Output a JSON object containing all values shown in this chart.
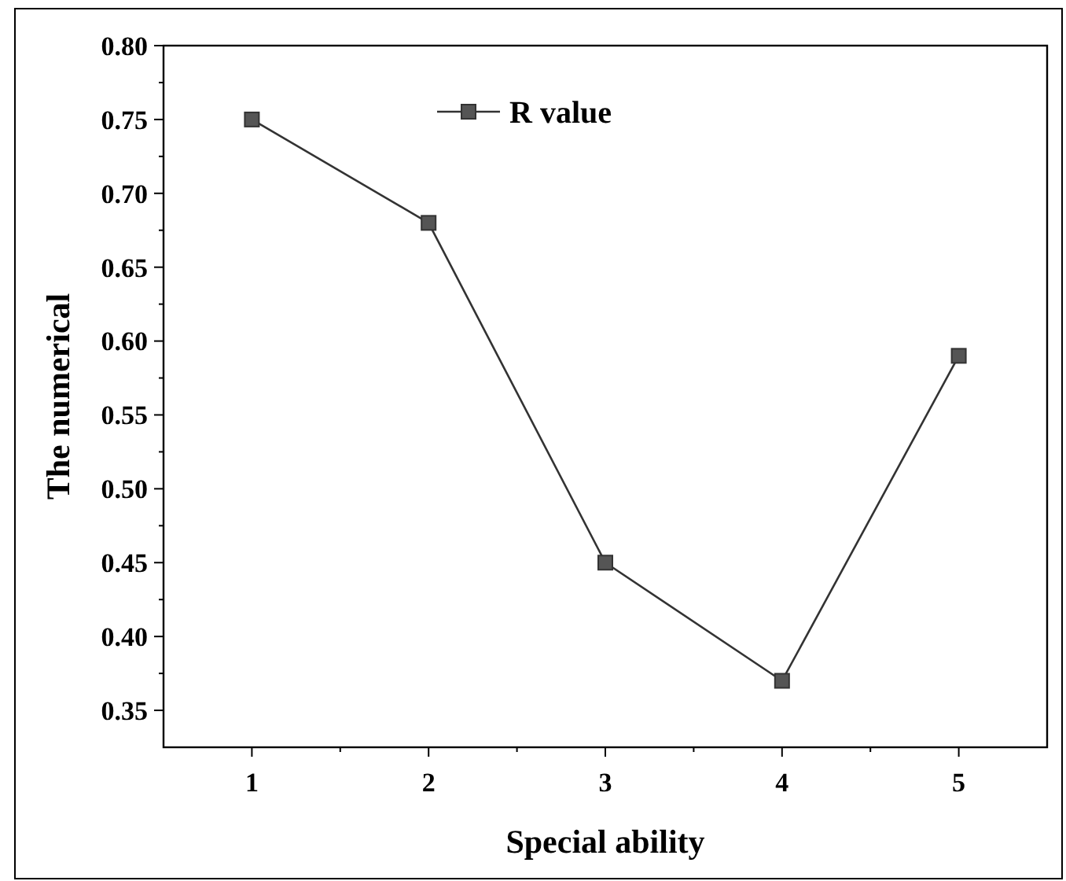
{
  "chart_data": {
    "type": "line",
    "xlabel": "Special ability",
    "ylabel": "The numerical",
    "x": [
      1,
      2,
      3,
      4,
      5
    ],
    "series": [
      {
        "name": "R value",
        "color": "#333333",
        "values": [
          0.75,
          0.68,
          0.45,
          0.37,
          0.59
        ]
      }
    ],
    "xlim": [
      0.5,
      5.5
    ],
    "xticks": [
      1,
      {
        "value": 1.5,
        "label": null
      },
      2,
      {
        "value": 2.5,
        "label": null
      },
      3,
      {
        "value": 3.5,
        "label": null
      },
      4,
      {
        "value": 4.5,
        "label": null
      },
      5
    ],
    "ylim": [
      0.325,
      0.8
    ],
    "yticks": [
      {
        "value": 0.35,
        "label": "0.35"
      },
      {
        "value": 0.375,
        "label": null
      },
      {
        "value": 0.4,
        "label": "0.40"
      },
      {
        "value": 0.425,
        "label": null
      },
      {
        "value": 0.45,
        "label": "0.45"
      },
      {
        "value": 0.475,
        "label": null
      },
      {
        "value": 0.5,
        "label": "0.50"
      },
      {
        "value": 0.525,
        "label": null
      },
      {
        "value": 0.55,
        "label": "0.55"
      },
      {
        "value": 0.575,
        "label": null
      },
      {
        "value": 0.6,
        "label": "0.60"
      },
      {
        "value": 0.625,
        "label": null
      },
      {
        "value": 0.65,
        "label": "0.65"
      },
      {
        "value": 0.675,
        "label": null
      },
      {
        "value": 0.7,
        "label": "0.70"
      },
      {
        "value": 0.725,
        "label": null
      },
      {
        "value": 0.75,
        "label": "0.75"
      },
      {
        "value": 0.775,
        "label": null
      },
      {
        "value": 0.8,
        "label": "0.80"
      }
    ],
    "grid": false,
    "legend": "top",
    "marker": "square",
    "line_style": "solid"
  }
}
